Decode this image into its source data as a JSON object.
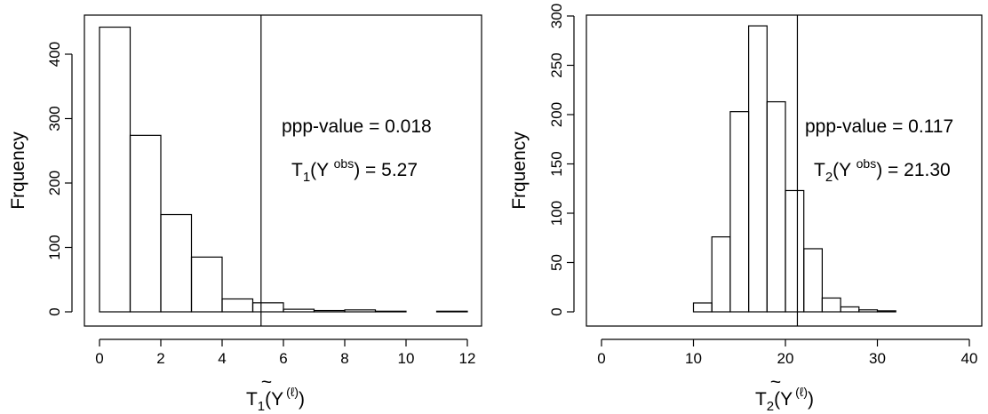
{
  "chart_data": [
    {
      "type": "bar",
      "name": "left",
      "ylabel": "Frquency",
      "xlabel": {
        "main": "T",
        "sub": "1",
        "open": "(",
        "inner": "Y",
        "sup": "(ℓ)",
        "close": ")"
      },
      "xlim": [
        0,
        12
      ],
      "ylim": [
        0,
        450
      ],
      "xticks": [
        0,
        2,
        4,
        6,
        8,
        10,
        12
      ],
      "yticks": [
        0,
        100,
        200,
        300,
        400
      ],
      "bin_edges": [
        0,
        1,
        2,
        3,
        4,
        5,
        6,
        7,
        8,
        9,
        10,
        11,
        12
      ],
      "values": [
        442,
        274,
        151,
        85,
        20,
        14,
        4,
        2,
        3,
        1,
        0,
        1
      ],
      "observed": 5.27,
      "annotation": {
        "ppp_text": "ppp-value =  0.018",
        "obs_T": "T",
        "obs_sub": "1",
        "obs_open": "(Y ",
        "obs_sup": "obs",
        "obs_close": ") =  5.27"
      }
    },
    {
      "type": "bar",
      "name": "right",
      "ylabel": "Frquency",
      "xlabel": {
        "main": "T",
        "sub": "2",
        "open": "(",
        "inner": "Y",
        "sup": "(ℓ)",
        "close": ")"
      },
      "xlim": [
        0,
        40
      ],
      "ylim": [
        0,
        300
      ],
      "xticks": [
        0,
        10,
        20,
        30,
        40
      ],
      "yticks": [
        0,
        50,
        100,
        150,
        200,
        250,
        300
      ],
      "bin_edges": [
        10,
        12,
        14,
        16,
        18,
        20,
        22,
        24,
        26,
        28,
        30,
        32
      ],
      "values": [
        9,
        76,
        203,
        290,
        213,
        123,
        64,
        14,
        5,
        2,
        1
      ],
      "observed": 21.3,
      "annotation": {
        "ppp_text": "ppp-value =  0.117",
        "obs_T": "T",
        "obs_sub": "2",
        "obs_open": "(Y ",
        "obs_sup": "obs",
        "obs_close": ") =  21.30"
      }
    }
  ]
}
